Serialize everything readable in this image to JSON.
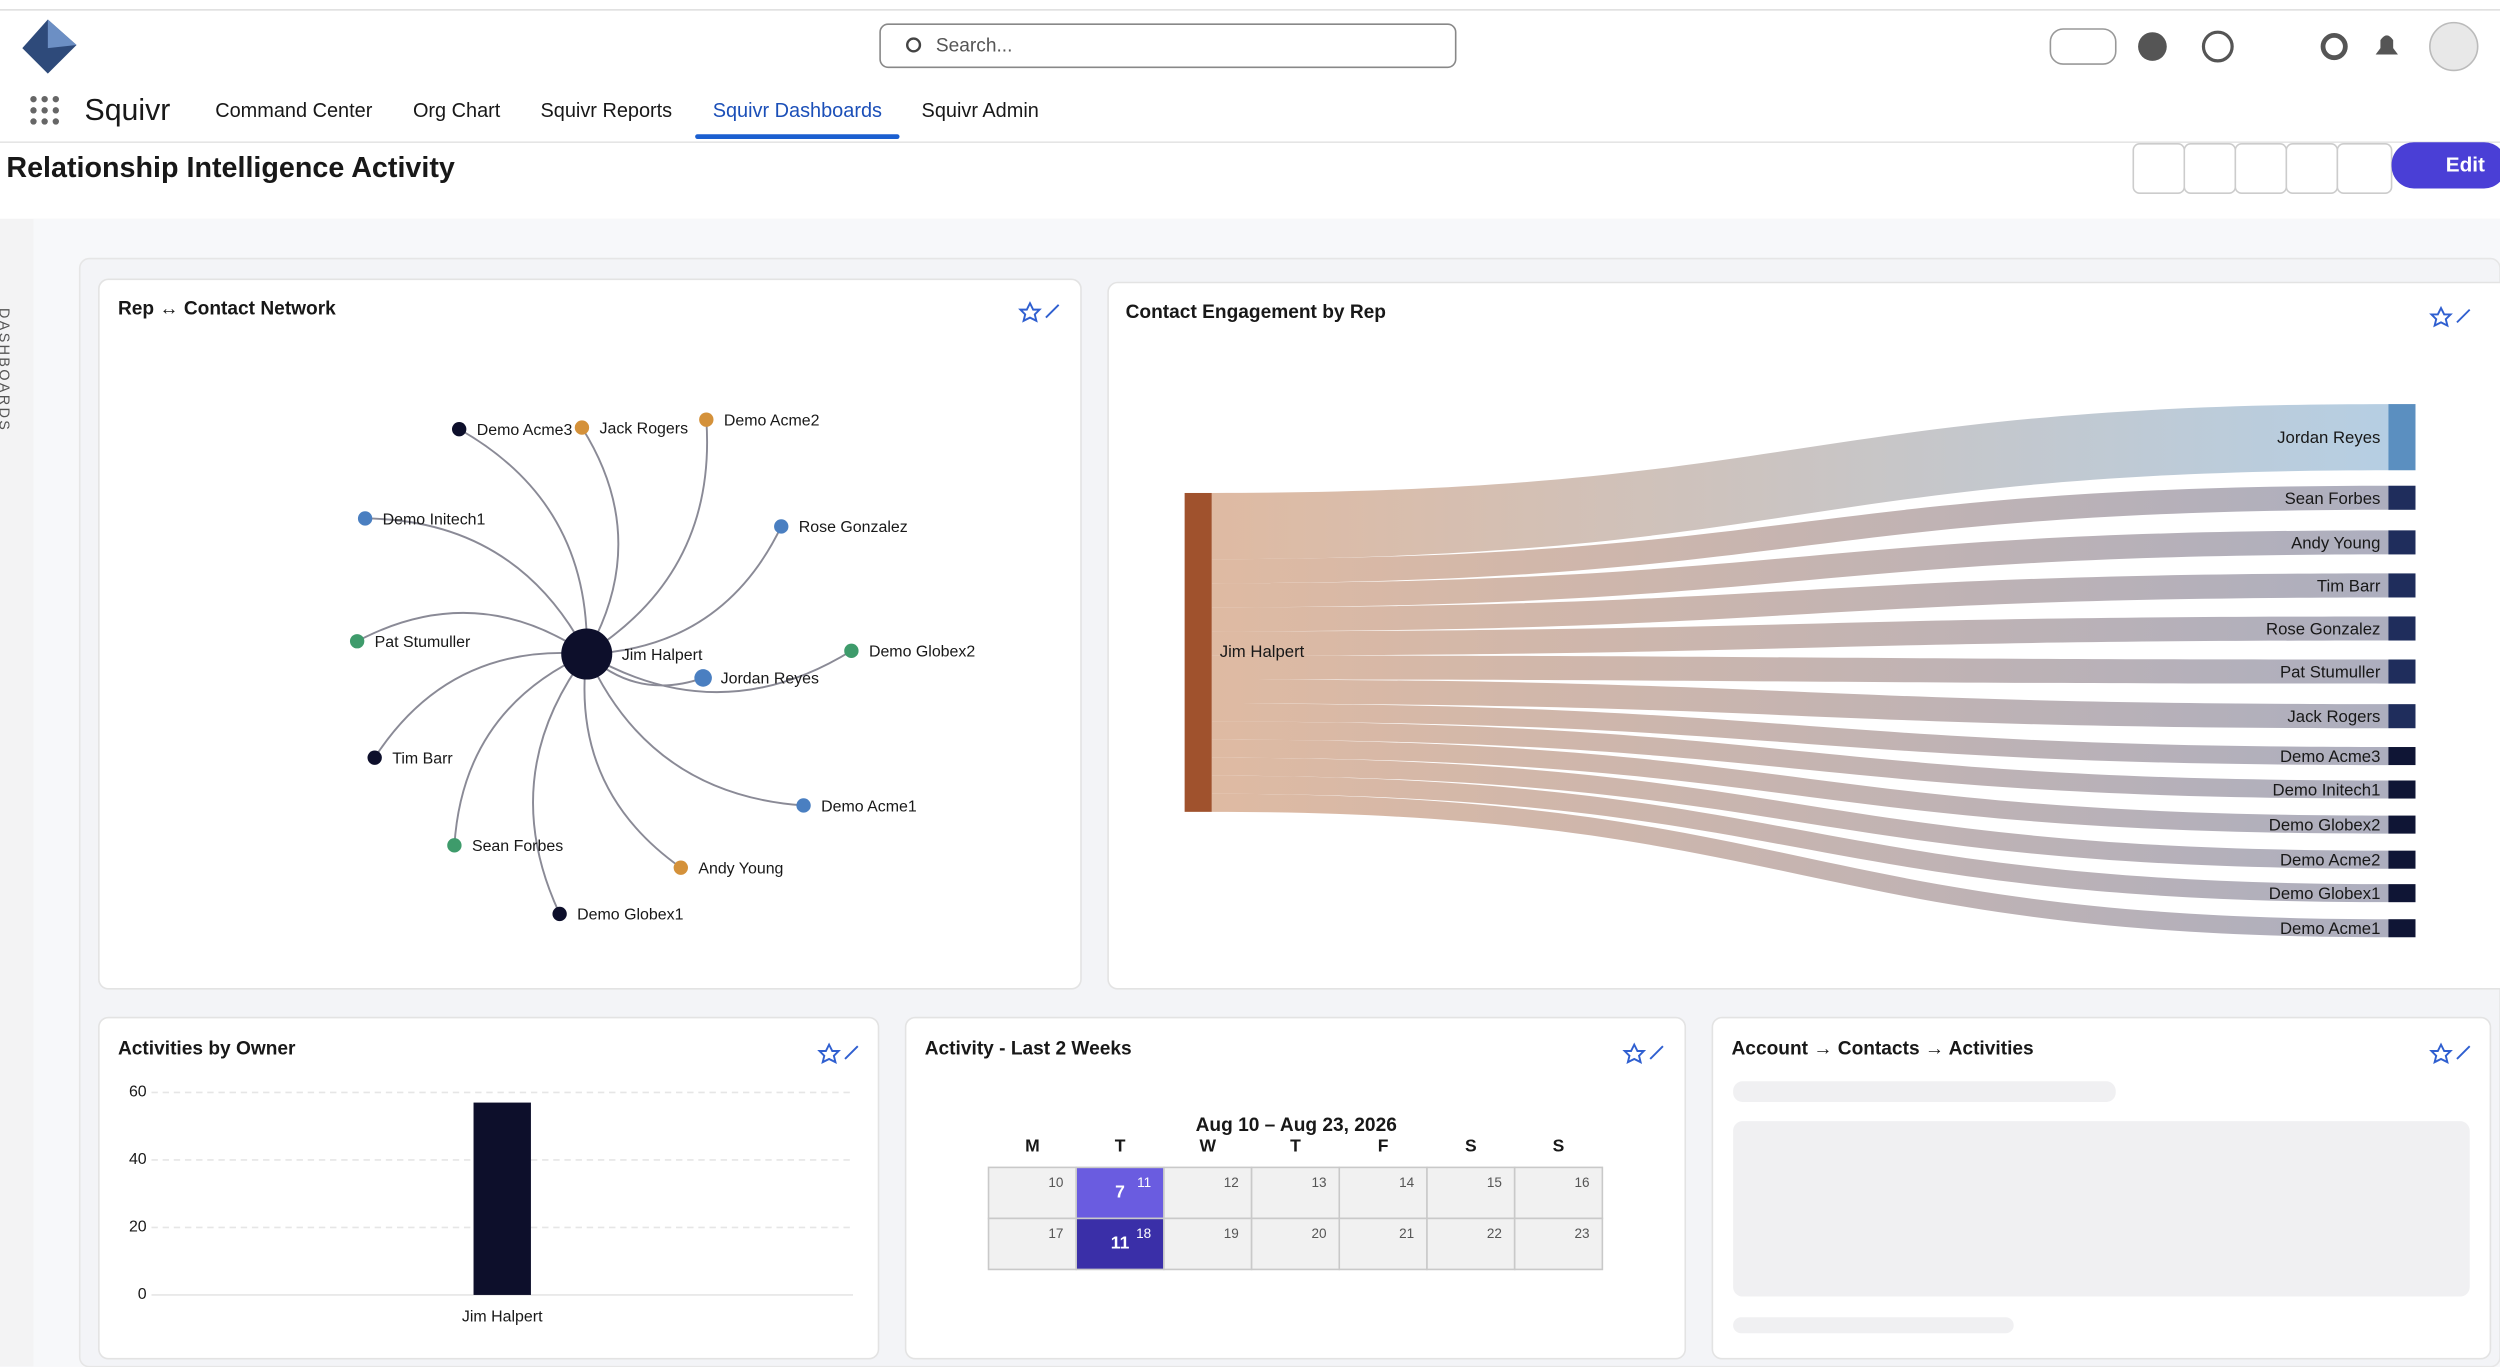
{
  "header": {
    "search_placeholder": "Search...",
    "app_name": "Squivr",
    "tabs": [
      "Command Center",
      "Org Chart",
      "Squivr Reports",
      "Squivr Dashboards",
      "Squivr Admin"
    ],
    "active_tab": 3
  },
  "page": {
    "title": "Relationship Intelligence Activity",
    "edit_button": "Edit",
    "sidebar_label": "DASHBOARDS"
  },
  "network": {
    "title": "Rep ↔ Contact Network",
    "center": "Jim Halpert",
    "nodes": [
      {
        "label": "Demo Acme3",
        "color": "#0d0f2b"
      },
      {
        "label": "Jack Rogers",
        "color": "#d4913a"
      },
      {
        "label": "Demo Acme2",
        "color": "#d4913a"
      },
      {
        "label": "Demo Initech1",
        "color": "#4a7fc1"
      },
      {
        "label": "Rose Gonzalez",
        "color": "#4a7fc1"
      },
      {
        "label": "Pat Stumuller",
        "color": "#3e9b6b"
      },
      {
        "label": "Demo Globex2",
        "color": "#3e9b6b"
      },
      {
        "label": "Jordan Reyes",
        "color": "#4a7fc1"
      },
      {
        "label": "Tim Barr",
        "color": "#0d0f2b"
      },
      {
        "label": "Demo Acme1",
        "color": "#4a7fc1"
      },
      {
        "label": "Sean Forbes",
        "color": "#3e9b6b"
      },
      {
        "label": "Andy Young",
        "color": "#d4913a"
      },
      {
        "label": "Demo Globex1",
        "color": "#0d0f2b"
      }
    ]
  },
  "sankey": {
    "title": "Contact Engagement by Rep",
    "source": "Jim Halpert",
    "source_color": "#a0522d",
    "targets": [
      "Jordan Reyes",
      "Sean Forbes",
      "Andy Young",
      "Tim Barr",
      "Rose Gonzalez",
      "Pat Stumuller",
      "Jack Rogers",
      "Demo Acme3",
      "Demo Initech1",
      "Demo Globex2",
      "Demo Acme2",
      "Demo Globex1",
      "Demo Acme1"
    ],
    "values": [
      11,
      4,
      4,
      4,
      4,
      4,
      4,
      3,
      3,
      3,
      3,
      3,
      3
    ],
    "colors": [
      "#5b8fc0",
      "#1f2d5c",
      "#1f2d5c",
      "#1f2d5c",
      "#1f2d5c",
      "#1f2d5c",
      "#1f2d5c",
      "#0f1535",
      "#0f1535",
      "#0f1535",
      "#0f1535",
      "#0f1535",
      "#0f1535"
    ]
  },
  "activities": {
    "title": "Activities by Owner",
    "type": "bar",
    "categories": [
      "Jim Halpert"
    ],
    "values": [
      57
    ],
    "color": "#0d0f2b",
    "ylim": [
      0,
      60
    ],
    "yticks": [
      0,
      20,
      40,
      60
    ],
    "grid": true
  },
  "calendar": {
    "title": "Activity - Last 2 Weeks",
    "range": "Aug 10 – Aug 23, 2026",
    "weekdays": [
      "M",
      "T",
      "W",
      "T",
      "F",
      "S",
      "S"
    ],
    "weeks": [
      [
        {
          "day": 10
        },
        {
          "day": 11,
          "count": 7
        },
        {
          "day": 12
        },
        {
          "day": 13
        },
        {
          "day": 14
        },
        {
          "day": 15
        },
        {
          "day": 16
        }
      ],
      [
        {
          "day": 17
        },
        {
          "day": 18,
          "count": 11
        },
        {
          "day": 19
        },
        {
          "day": 20
        },
        {
          "day": 21
        },
        {
          "day": 22
        },
        {
          "day": 23
        }
      ]
    ]
  },
  "account": {
    "title": "Account → Contacts → Activities"
  }
}
